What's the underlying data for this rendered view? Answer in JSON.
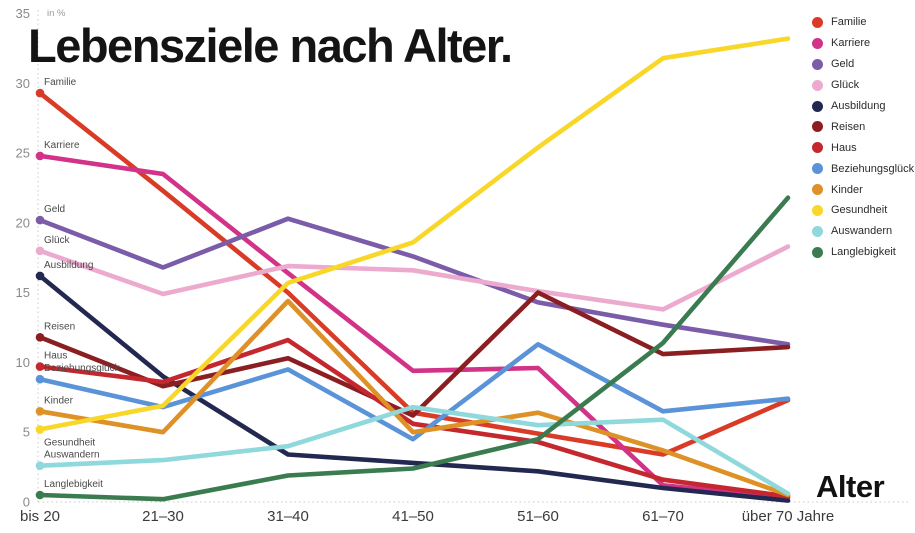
{
  "title": "Lebensziele nach Alter.",
  "y_axis_unit_label": "in %",
  "x_axis_title": "Alter",
  "chart_data": {
    "type": "line",
    "title": "Lebensziele nach Alter.",
    "categories": [
      "bis 20",
      "21–30",
      "31–40",
      "41–50",
      "51–60",
      "61–70",
      "über 70 Jahre"
    ],
    "xlabel": "Alter",
    "ylabel": "in %",
    "ylim": [
      0,
      35
    ],
    "y_ticks": [
      0,
      5,
      10,
      15,
      20,
      25,
      30,
      35
    ],
    "grid": "dotted axis lines only",
    "legend_position": "top-right",
    "series": [
      {
        "name": "Familie",
        "color": "#d93b27",
        "values": [
          29.3,
          22.3,
          15.0,
          6.4,
          4.9,
          3.4,
          7.3
        ]
      },
      {
        "name": "Karriere",
        "color": "#d23287",
        "values": [
          24.8,
          23.5,
          16.4,
          9.4,
          9.6,
          1.2,
          0.3
        ]
      },
      {
        "name": "Geld",
        "color": "#7a5ca8",
        "values": [
          20.2,
          16.8,
          20.3,
          17.6,
          14.3,
          12.7,
          11.3
        ]
      },
      {
        "name": "Glück",
        "color": "#edaacf",
        "values": [
          18.0,
          14.9,
          16.9,
          16.6,
          15.1,
          13.8,
          18.3
        ]
      },
      {
        "name": "Ausbildung",
        "color": "#232850",
        "values": [
          16.2,
          9.0,
          3.4,
          2.8,
          2.2,
          1.0,
          0.1
        ]
      },
      {
        "name": "Reisen",
        "color": "#8b1e20",
        "values": [
          11.8,
          8.3,
          10.3,
          6.2,
          15.0,
          10.6,
          11.1
        ]
      },
      {
        "name": "Haus",
        "color": "#c4272e",
        "values": [
          9.7,
          8.6,
          11.6,
          5.6,
          4.3,
          1.6,
          0.4
        ]
      },
      {
        "name": "Beziehungsglück",
        "color": "#5a93d8",
        "values": [
          8.8,
          6.8,
          9.5,
          4.5,
          11.3,
          6.5,
          7.4
        ]
      },
      {
        "name": "Kinder",
        "color": "#de9126",
        "values": [
          6.5,
          5.0,
          14.4,
          5.0,
          6.4,
          3.7,
          0.5
        ]
      },
      {
        "name": "Gesundheit",
        "color": "#f8d729",
        "values": [
          5.2,
          6.9,
          15.7,
          18.6,
          25.4,
          31.8,
          33.2
        ]
      },
      {
        "name": "Auswandern",
        "color": "#8fd8dc",
        "values": [
          2.6,
          3.0,
          4.0,
          6.8,
          5.5,
          5.9,
          0.6
        ]
      },
      {
        "name": "Langlebigkeit",
        "color": "#3a7b50",
        "values": [
          0.5,
          0.2,
          1.9,
          2.4,
          4.5,
          11.4,
          21.8
        ]
      }
    ]
  }
}
